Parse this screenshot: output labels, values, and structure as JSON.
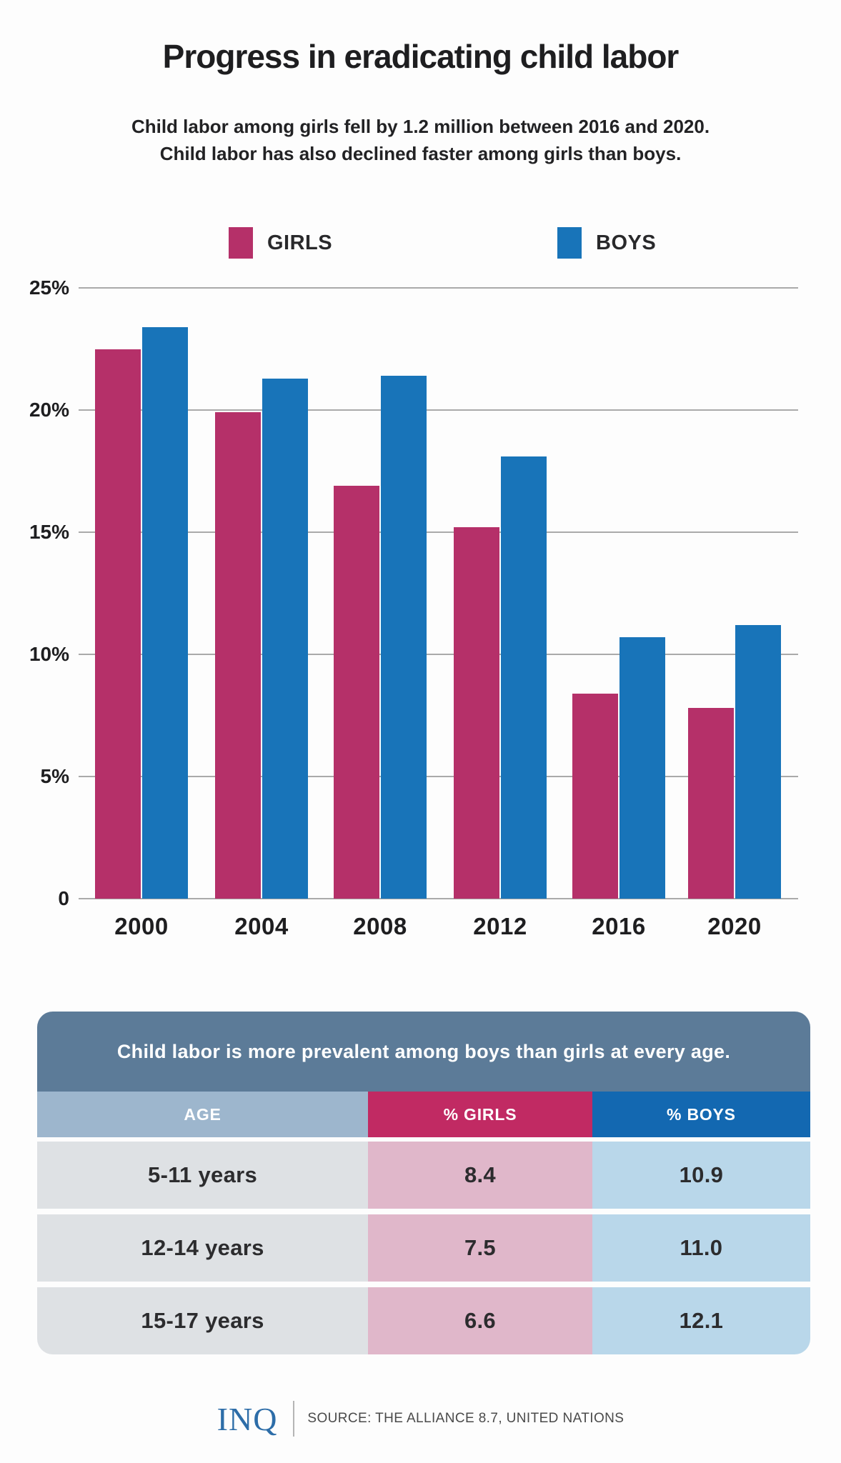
{
  "header": {
    "title": "Progress in eradicating child labor",
    "subtitle_line1": "Child labor among girls fell by 1.2 million between 2016 and 2020.",
    "subtitle_line2": "Child labor has also declined faster among girls than boys."
  },
  "chart_data": {
    "type": "bar",
    "categories": [
      "2000",
      "2004",
      "2008",
      "2012",
      "2016",
      "2020"
    ],
    "series": [
      {
        "name": "GIRLS",
        "color": "#b53069",
        "values": [
          22.5,
          19.9,
          16.9,
          15.2,
          8.4,
          7.8
        ]
      },
      {
        "name": "BOYS",
        "color": "#1874b9",
        "values": [
          23.4,
          21.3,
          21.4,
          18.1,
          10.7,
          11.2
        ]
      }
    ],
    "ylabel": "",
    "xlabel": "",
    "ylim": [
      0,
      25
    ],
    "yticks": [
      {
        "value": 25,
        "label": "25%"
      },
      {
        "value": 20,
        "label": "20%"
      },
      {
        "value": 15,
        "label": "15%"
      },
      {
        "value": 10,
        "label": "10%"
      },
      {
        "value": 5,
        "label": "5%"
      },
      {
        "value": 0,
        "label": "0"
      }
    ],
    "grid": true,
    "legend_position": "top"
  },
  "table": {
    "banner": "Child labor is more prevalent among boys than girls at every age.",
    "columns": [
      "AGE",
      "% GIRLS",
      "% BOYS"
    ],
    "rows": [
      {
        "age": "5-11 years",
        "girls": "8.4",
        "boys": "10.9"
      },
      {
        "age": "12-14 years",
        "girls": "7.5",
        "boys": "11.0"
      },
      {
        "age": "15-17 years",
        "girls": "6.6",
        "boys": "12.1"
      }
    ],
    "colors": {
      "banner_bg": "#5c7b98",
      "age_header_bg": "#9db6cd",
      "girls_header_bg": "#c12a63",
      "boys_header_bg": "#1368b1",
      "age_cell_bg": "#dee1e4",
      "girls_cell_bg": "#e0b7ca",
      "boys_cell_bg": "#b9d7ea"
    }
  },
  "footer": {
    "logo": "INQ",
    "source": "SOURCE: THE ALLIANCE 8.7, UNITED NATIONS"
  }
}
